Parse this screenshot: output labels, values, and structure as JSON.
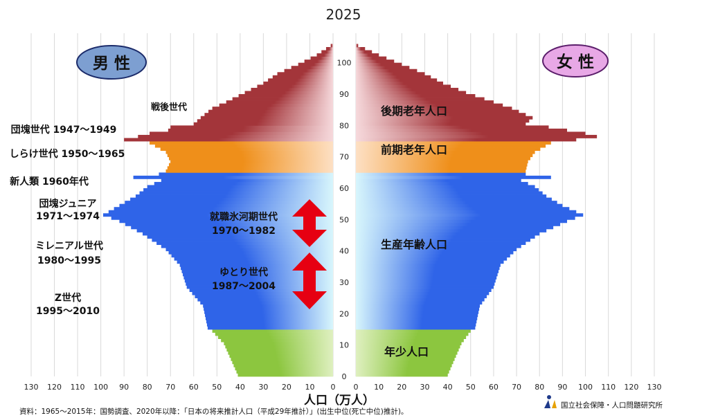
{
  "chart_data": {
    "type": "population-pyramid",
    "title": "2025",
    "xlabel": "人口（万人）",
    "x_ticks_left": [
      "130",
      "120",
      "110",
      "100",
      "90",
      "80",
      "70",
      "60",
      "50",
      "40",
      "30",
      "20",
      "10",
      "0"
    ],
    "x_ticks_right": [
      "0",
      "10",
      "20",
      "30",
      "40",
      "50",
      "60",
      "70",
      "80",
      "90",
      "100",
      "110",
      "120",
      "130"
    ],
    "age_ticks": [
      "0",
      "10",
      "20",
      "30",
      "40",
      "50",
      "60",
      "70",
      "80",
      "90",
      "100"
    ],
    "xlim": [
      0,
      130
    ],
    "age_range": [
      0,
      105
    ],
    "gender_labels": {
      "male": "男 性",
      "female": "女 性"
    },
    "bands": [
      {
        "label": "年少人口",
        "age_from": 0,
        "age_to": 14,
        "color_outer": "#8cc63f",
        "color_inner": "#dff0c0"
      },
      {
        "label": "生産年齢人口",
        "age_from": 15,
        "age_to": 64,
        "color_outer": "#2f64e8",
        "color_inner": "#d8f6fc"
      },
      {
        "label": "前期老年人口",
        "age_from": 65,
        "age_to": 74,
        "color_outer": "#ef8f1a",
        "color_inner": "#fde0c4"
      },
      {
        "label": "後期老年人口",
        "age_from": 75,
        "age_to": 105,
        "color_outer": "#a3353a",
        "color_inner": "#f6d9dc"
      }
    ],
    "male": [
      [
        0,
        41
      ],
      [
        5,
        44
      ],
      [
        10,
        47
      ],
      [
        14,
        52
      ],
      [
        15,
        54
      ],
      [
        22,
        56
      ],
      [
        28,
        63
      ],
      [
        35,
        66
      ],
      [
        40,
        72
      ],
      [
        45,
        82
      ],
      [
        49,
        92
      ],
      [
        51,
        99
      ],
      [
        54,
        92
      ],
      [
        57,
        85
      ],
      [
        60,
        80
      ],
      [
        62,
        74
      ],
      [
        63,
        86
      ],
      [
        64,
        75
      ],
      [
        65,
        72
      ],
      [
        68,
        70
      ],
      [
        71,
        72
      ],
      [
        74,
        79
      ],
      [
        75,
        90
      ],
      [
        76,
        84
      ],
      [
        77,
        79
      ],
      [
        78,
        71
      ],
      [
        79,
        70
      ],
      [
        80,
        60
      ],
      [
        82,
        57
      ],
      [
        85,
        52
      ],
      [
        87,
        46
      ],
      [
        90,
        38
      ],
      [
        93,
        30
      ],
      [
        96,
        24
      ],
      [
        99,
        15
      ],
      [
        102,
        7
      ],
      [
        105,
        1
      ]
    ],
    "female": [
      [
        0,
        40
      ],
      [
        5,
        43
      ],
      [
        10,
        46
      ],
      [
        14,
        50
      ],
      [
        15,
        52
      ],
      [
        22,
        54
      ],
      [
        28,
        60
      ],
      [
        35,
        63
      ],
      [
        40,
        70
      ],
      [
        45,
        80
      ],
      [
        49,
        92
      ],
      [
        51,
        99
      ],
      [
        54,
        90
      ],
      [
        57,
        83
      ],
      [
        60,
        78
      ],
      [
        62,
        72
      ],
      [
        63,
        85
      ],
      [
        64,
        74
      ],
      [
        65,
        74
      ],
      [
        68,
        75
      ],
      [
        71,
        78
      ],
      [
        74,
        85
      ],
      [
        75,
        96
      ],
      [
        76,
        105
      ],
      [
        77,
        100
      ],
      [
        78,
        92
      ],
      [
        79,
        84
      ],
      [
        80,
        74
      ],
      [
        82,
        77
      ],
      [
        85,
        68
      ],
      [
        87,
        60
      ],
      [
        90,
        48
      ],
      [
        93,
        38
      ],
      [
        96,
        30
      ],
      [
        99,
        20
      ],
      [
        102,
        10
      ],
      [
        105,
        1
      ]
    ],
    "annotations": {
      "left": [
        {
          "text": "戦後世代"
        },
        {
          "text": "団塊世代 1947〜1949"
        },
        {
          "text": "しらけ世代 1950〜1965"
        },
        {
          "text": "新人類 1960年代"
        },
        {
          "text": "団塊ジュニア"
        },
        {
          "text": "1971〜1974"
        },
        {
          "text": "ミレニアル世代"
        },
        {
          "text": "1980〜1995"
        },
        {
          "text": "Z世代"
        },
        {
          "text": "1995〜2010"
        }
      ],
      "center": [
        {
          "text": "就職氷河期世代"
        },
        {
          "text": "1970〜1982"
        },
        {
          "text": "ゆとり世代"
        },
        {
          "text": "1987〜2004"
        }
      ]
    }
  },
  "footer": {
    "source": "資料：1965〜2015年：国勢調査、2020年以降：「日本の将来推計人口（平成29年推計）」(出生中位(死亡中位)推計)。",
    "logo_text": "国立社会保障・人口問題研究所"
  }
}
